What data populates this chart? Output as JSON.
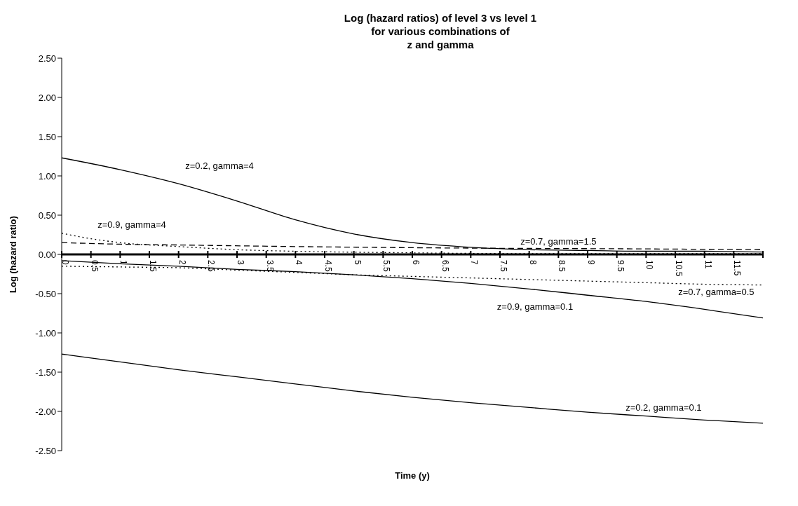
{
  "chart_data": {
    "type": "line",
    "title": "Log (hazard ratios) of level 3 vs level 1\nfor various combinations of\nz and gamma",
    "xlabel": "Time (y)",
    "ylabel": "Log (hazard ratio)",
    "xlim": [
      0,
      12
    ],
    "ylim": [
      -2.5,
      2.5
    ],
    "xticks": [
      0,
      0.5,
      1,
      1.5,
      2,
      2.5,
      3,
      3.5,
      4,
      4.5,
      5,
      5.5,
      6,
      6.5,
      7,
      7.5,
      8,
      8.5,
      9,
      9.5,
      10,
      10.5,
      11,
      11.5,
      {
        "value": 12,
        "label": null
      }
    ],
    "yticks": [
      {
        "value": -2.5,
        "label": "-2.50"
      },
      {
        "value": -2,
        "label": "-2.00"
      },
      {
        "value": -1.5,
        "label": "-1.50"
      },
      {
        "value": -1,
        "label": "-1.00"
      },
      {
        "value": -0.5,
        "label": "-0.50"
      },
      {
        "value": 0,
        "label": "0.00"
      },
      {
        "value": 0.5,
        "label": "0.50"
      },
      {
        "value": 1,
        "label": "1.00"
      },
      {
        "value": 1.5,
        "label": "1.50"
      },
      {
        "value": 2,
        "label": "2.00"
      },
      {
        "value": 2.5,
        "label": "2.50"
      }
    ],
    "marker": "none",
    "series": [
      {
        "name": "z=0.2, gamma=4",
        "color": "#000000",
        "line_style": "solid",
        "x": [
          0,
          1,
          2,
          3,
          4,
          5,
          6,
          7,
          8,
          9,
          10,
          11,
          12
        ],
        "values": [
          1.23,
          1.08,
          0.9,
          0.68,
          0.44,
          0.26,
          0.15,
          0.09,
          0.06,
          0.05,
          0.04,
          0.04,
          0.03
        ]
      },
      {
        "name": "z=0.9, gamma=4",
        "color": "#000000",
        "line_style": "dotted",
        "x": [
          0,
          0.5,
          1,
          2,
          3,
          4,
          6,
          8,
          10,
          12
        ],
        "values": [
          0.27,
          0.2,
          0.15,
          0.1,
          0.06,
          0.04,
          0.02,
          0.01,
          0.01,
          0.01
        ]
      },
      {
        "name": "z=0.7, gamma=1.5",
        "color": "#000000",
        "line_style": "dashed",
        "x": [
          0,
          1,
          2,
          4,
          7,
          10,
          12
        ],
        "values": [
          0.15,
          0.13,
          0.12,
          0.1,
          0.08,
          0.07,
          0.06
        ]
      },
      {
        "name": "z=0.7, gamma=0.5",
        "color": "#000000",
        "line_style": "dotted",
        "x": [
          0,
          1,
          2,
          3,
          4,
          5,
          6,
          7,
          8,
          9,
          10,
          11,
          12
        ],
        "values": [
          -0.15,
          -0.16,
          -0.17,
          -0.2,
          -0.23,
          -0.26,
          -0.28,
          -0.3,
          -0.32,
          -0.34,
          -0.36,
          -0.38,
          -0.39
        ]
      },
      {
        "name": "z=0.9, gamma=0.1",
        "color": "#000000",
        "line_style": "solid",
        "x": [
          0,
          1,
          2,
          3,
          4,
          5,
          6,
          7,
          8,
          9,
          10,
          11,
          12
        ],
        "values": [
          -0.08,
          -0.12,
          -0.15,
          -0.19,
          -0.22,
          -0.26,
          -0.31,
          -0.37,
          -0.44,
          -0.52,
          -0.6,
          -0.7,
          -0.81
        ]
      },
      {
        "name": "z=0.2, gamma=0.1",
        "color": "#000000",
        "line_style": "solid",
        "x": [
          0,
          1,
          2,
          3,
          4,
          5,
          6,
          7,
          8,
          9,
          10,
          11,
          12
        ],
        "values": [
          -1.27,
          -1.37,
          -1.47,
          -1.56,
          -1.65,
          -1.74,
          -1.82,
          -1.89,
          -1.95,
          -2.01,
          -2.06,
          -2.11,
          -2.15
        ]
      }
    ]
  }
}
